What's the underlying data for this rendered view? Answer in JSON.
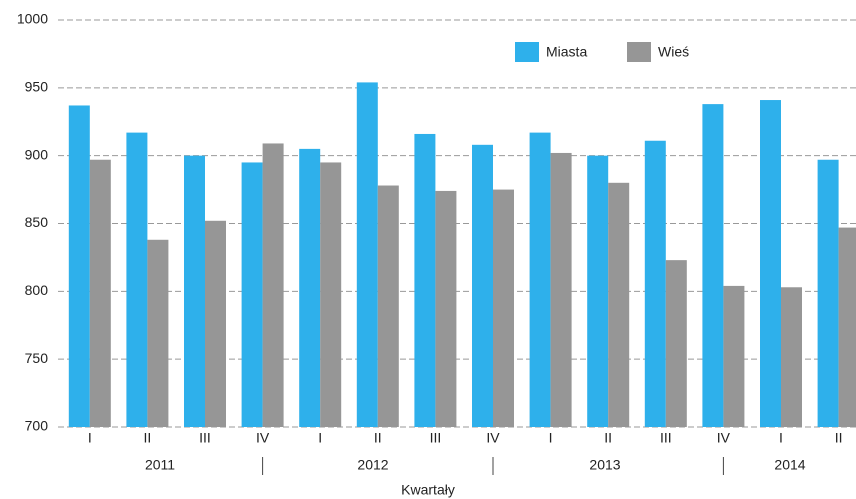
{
  "chart_data": {
    "type": "bar",
    "x_label": "Kwartały",
    "categories": [
      "I",
      "II",
      "III",
      "IV",
      "I",
      "II",
      "III",
      "IV",
      "I",
      "II",
      "III",
      "IV",
      "I",
      "II"
    ],
    "years": [
      "2011",
      "2012",
      "2013",
      "2014"
    ],
    "series": [
      {
        "name": "Miasta",
        "color": "#2eb0eb",
        "values": [
          937,
          917,
          900,
          895,
          905,
          954,
          916,
          908,
          917,
          900,
          911,
          938,
          941,
          897
        ]
      },
      {
        "name": "Wieś",
        "color": "#969696",
        "values": [
          897,
          838,
          852,
          909,
          895,
          878,
          874,
          875,
          902,
          880,
          823,
          804,
          803,
          847
        ]
      }
    ],
    "ylim": [
      700,
      1000
    ],
    "yticks": [
      700,
      750,
      800,
      850,
      900,
      950,
      1000
    ],
    "grid": true,
    "legend": "top-right"
  }
}
